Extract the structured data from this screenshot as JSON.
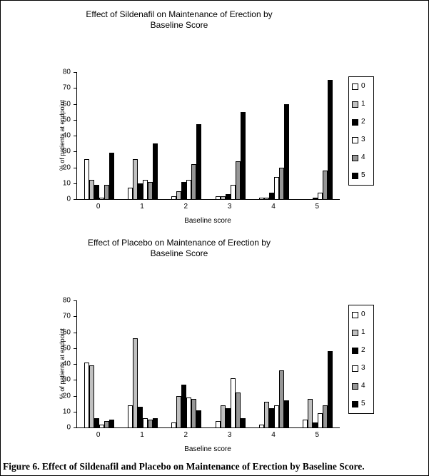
{
  "figure": {
    "caption": "Figure 6. Effect of Sildenafil and Placebo on Maintenance of Erection by Baseline Score."
  },
  "chart_data": [
    {
      "type": "bar",
      "title": "Effect of  Sildenafil on Maintenance of Erection by\nBaseline Score",
      "xlabel": "Baseline score",
      "ylabel": "% of patients at endpoint",
      "ylim": [
        0,
        80
      ],
      "ytick_step": 10,
      "grid": false,
      "legend_position": "right",
      "categories": [
        "0",
        "1",
        "2",
        "3",
        "4",
        "5"
      ],
      "series": [
        {
          "name": "0",
          "color": "#ffffff",
          "values": [
            25,
            7,
            2,
            2,
            1,
            0
          ]
        },
        {
          "name": "1",
          "color": "#c0c0c0",
          "values": [
            12,
            25,
            5,
            2,
            1,
            0
          ]
        },
        {
          "name": "2",
          "color": "#000000",
          "values": [
            9,
            10,
            11,
            3,
            4,
            1
          ]
        },
        {
          "name": "3",
          "color": "#ffffff",
          "values": [
            1,
            12,
            12,
            9,
            14,
            4
          ]
        },
        {
          "name": "4",
          "color": "#969696",
          "values": [
            9,
            11,
            22,
            24,
            20,
            18
          ]
        },
        {
          "name": "5",
          "color": "#000000",
          "values": [
            29,
            35,
            47,
            55,
            60,
            75
          ]
        }
      ]
    },
    {
      "type": "bar",
      "title": "Effect of Placebo on Maintenance of Erection by\nBaseline Score",
      "xlabel": "Baseline score",
      "ylabel": "% of patients at endpoint",
      "ylim": [
        0,
        80
      ],
      "ytick_step": 10,
      "grid": false,
      "legend_position": "right",
      "categories": [
        "0",
        "1",
        "2",
        "3",
        "4",
        "5"
      ],
      "series": [
        {
          "name": "0",
          "color": "#ffffff",
          "values": [
            41,
            14,
            3,
            4,
            2,
            5
          ]
        },
        {
          "name": "1",
          "color": "#c0c0c0",
          "values": [
            39,
            56,
            20,
            14,
            16,
            18
          ]
        },
        {
          "name": "2",
          "color": "#000000",
          "values": [
            6,
            13,
            27,
            12,
            12,
            3
          ]
        },
        {
          "name": "3",
          "color": "#ffffff",
          "values": [
            2,
            6,
            19,
            31,
            14,
            9
          ]
        },
        {
          "name": "4",
          "color": "#969696",
          "values": [
            4,
            5,
            18,
            22,
            36,
            14
          ]
        },
        {
          "name": "5",
          "color": "#000000",
          "values": [
            5,
            6,
            11,
            6,
            17,
            48
          ]
        }
      ]
    }
  ]
}
